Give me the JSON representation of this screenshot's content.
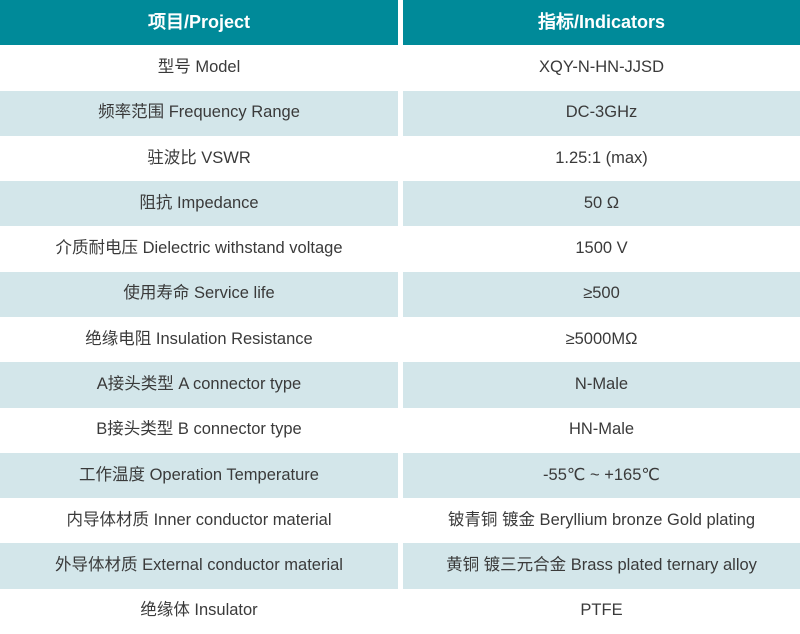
{
  "table": {
    "header": {
      "project": "项目/Project",
      "indicators": "指标/Indicators"
    },
    "rows": [
      {
        "label": "型号 Model",
        "value": "XQY-N-HN-JJSD"
      },
      {
        "label": "频率范围 Frequency Range",
        "value": "DC-3GHz"
      },
      {
        "label": "驻波比 VSWR",
        "value": "1.25:1 (max)"
      },
      {
        "label": "阻抗 Impedance",
        "value": "50 Ω"
      },
      {
        "label": "介质耐电压 Dielectric withstand voltage",
        "value": "1500 V"
      },
      {
        "label": "使用寿命 Service life",
        "value": "≥500"
      },
      {
        "label": "绝缘电阻 Insulation Resistance",
        "value": "≥5000MΩ"
      },
      {
        "label": "A接头类型 A connector type",
        "value": "N-Male"
      },
      {
        "label": "B接头类型 B connector type",
        "value": "HN-Male"
      },
      {
        "label": "工作温度 Operation Temperature",
        "value": "-55℃ ~ +165℃"
      },
      {
        "label": "内导体材质 Inner conductor material",
        "value": "铍青铜 镀金 Beryllium bronze Gold plating"
      },
      {
        "label": "外导体材质 External conductor material",
        "value": "黄铜 镀三元合金 Brass plated ternary alloy"
      },
      {
        "label": "绝缘体 Insulator",
        "value": "PTFE"
      }
    ],
    "colors": {
      "header_bg": "#008A99",
      "row_alt_bg": "#D3E6EA",
      "row_bg": "#FFFFFF",
      "header_text": "#FFFFFF",
      "body_text": "#3A3A3A",
      "divider": "#FFFFFF"
    }
  }
}
